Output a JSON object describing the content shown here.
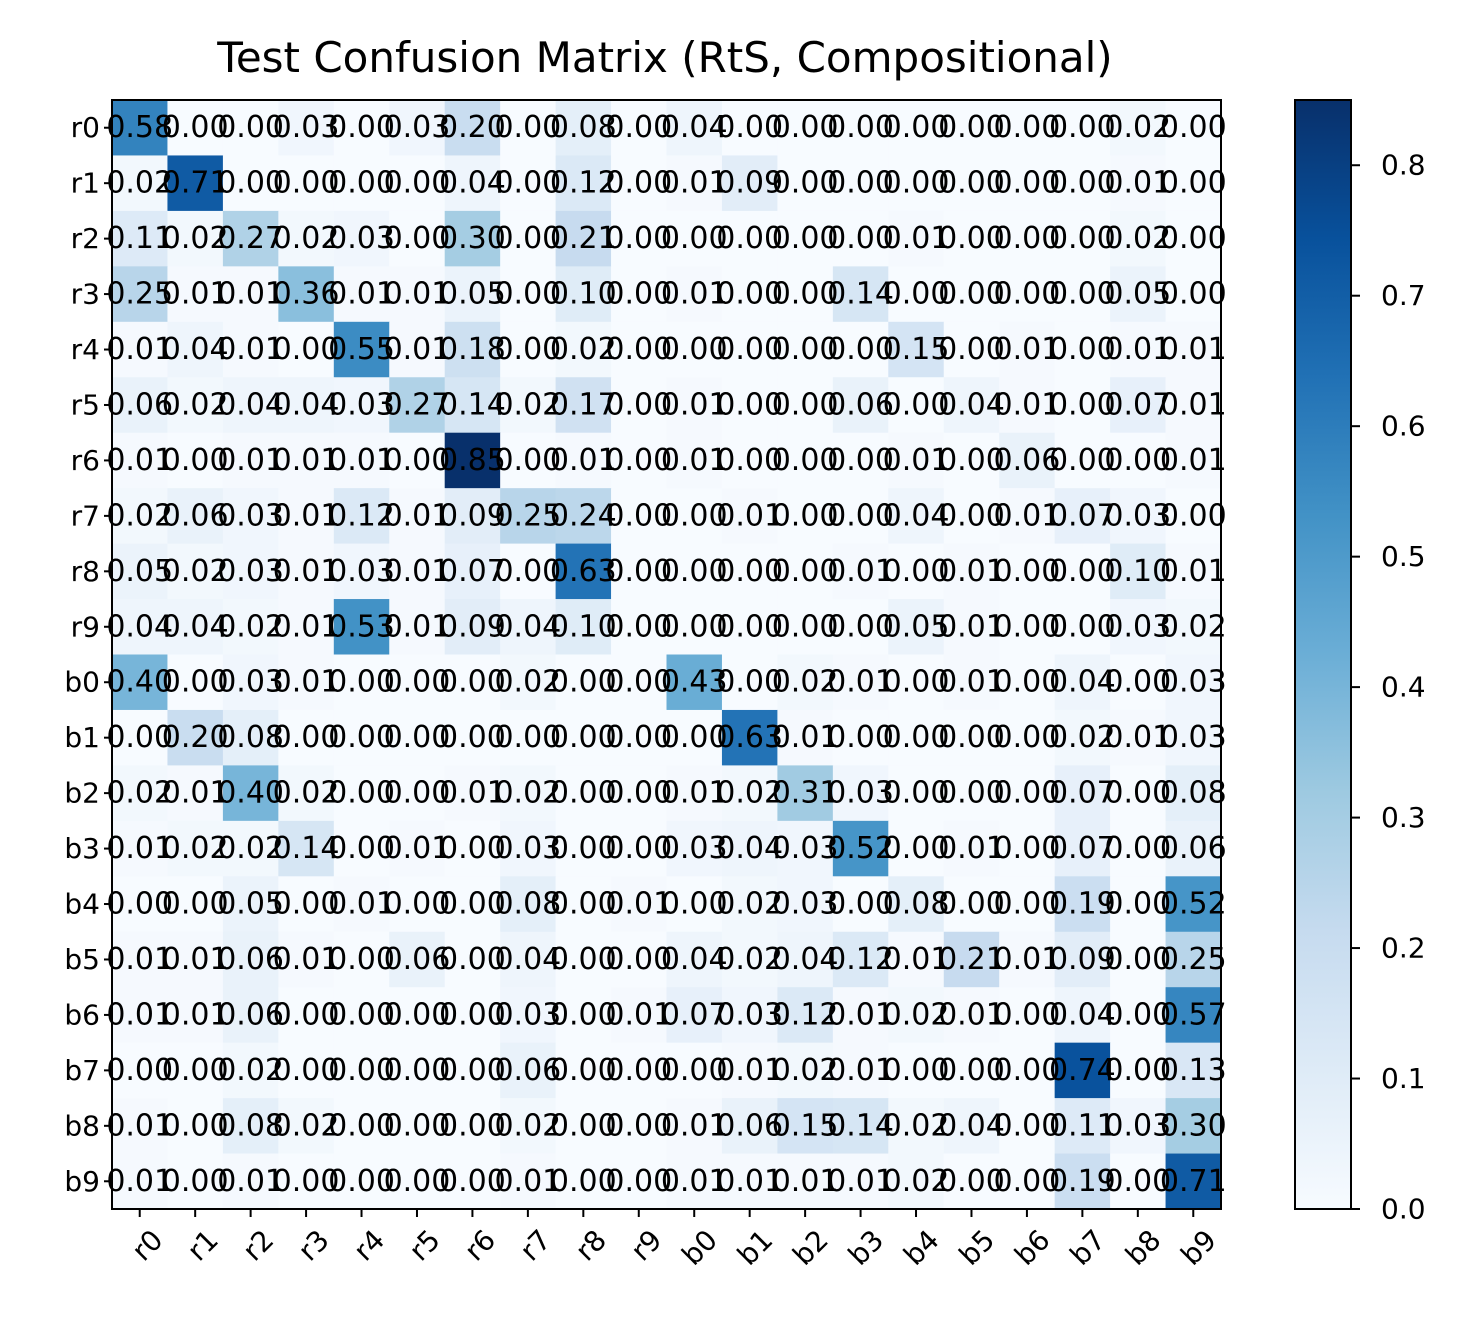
{
  "chart_data": {
    "type": "heatmap",
    "title": "Test Confusion Matrix (RtS, Compositional)",
    "row_labels": [
      "r0",
      "r1",
      "r2",
      "r3",
      "r4",
      "r5",
      "r6",
      "r7",
      "r8",
      "r9",
      "b0",
      "b1",
      "b2",
      "b3",
      "b4",
      "b5",
      "b6",
      "b7",
      "b8",
      "b9"
    ],
    "col_labels": [
      "r0",
      "r1",
      "r2",
      "r3",
      "r4",
      "r5",
      "r6",
      "r7",
      "r8",
      "r9",
      "b0",
      "b1",
      "b2",
      "b3",
      "b4",
      "b5",
      "b6",
      "b7",
      "b8",
      "b9"
    ],
    "values": [
      [
        0.58,
        0.0,
        0.0,
        0.03,
        0.0,
        0.03,
        0.2,
        0.0,
        0.08,
        0.0,
        0.04,
        0.0,
        0.0,
        0.0,
        0.0,
        0.0,
        0.0,
        0.0,
        0.02,
        0.0
      ],
      [
        0.02,
        0.71,
        0.0,
        0.0,
        0.0,
        0.0,
        0.04,
        0.0,
        0.12,
        0.0,
        0.01,
        0.09,
        0.0,
        0.0,
        0.0,
        0.0,
        0.0,
        0.0,
        0.01,
        0.0
      ],
      [
        0.11,
        0.02,
        0.27,
        0.02,
        0.03,
        0.0,
        0.3,
        0.0,
        0.21,
        0.0,
        0.0,
        0.0,
        0.0,
        0.0,
        0.01,
        0.0,
        0.0,
        0.0,
        0.02,
        0.0
      ],
      [
        0.25,
        0.01,
        0.01,
        0.36,
        0.01,
        0.01,
        0.05,
        0.0,
        0.1,
        0.0,
        0.01,
        0.0,
        0.0,
        0.14,
        0.0,
        0.0,
        0.0,
        0.0,
        0.05,
        0.0
      ],
      [
        0.01,
        0.04,
        0.01,
        0.0,
        0.55,
        0.01,
        0.18,
        0.0,
        0.02,
        0.0,
        0.0,
        0.0,
        0.0,
        0.0,
        0.15,
        0.0,
        0.01,
        0.0,
        0.01,
        0.01
      ],
      [
        0.06,
        0.02,
        0.04,
        0.04,
        0.03,
        0.27,
        0.14,
        0.02,
        0.17,
        0.0,
        0.01,
        0.0,
        0.0,
        0.06,
        0.0,
        0.04,
        0.01,
        0.0,
        0.07,
        0.01
      ],
      [
        0.01,
        0.0,
        0.01,
        0.01,
        0.01,
        0.0,
        0.85,
        0.0,
        0.01,
        0.0,
        0.01,
        0.0,
        0.0,
        0.0,
        0.01,
        0.0,
        0.06,
        0.0,
        0.0,
        0.01
      ],
      [
        0.02,
        0.06,
        0.03,
        0.01,
        0.12,
        0.01,
        0.09,
        0.25,
        0.24,
        0.0,
        0.0,
        0.01,
        0.0,
        0.0,
        0.04,
        0.0,
        0.01,
        0.07,
        0.03,
        0.0
      ],
      [
        0.05,
        0.02,
        0.03,
        0.01,
        0.03,
        0.01,
        0.07,
        0.0,
        0.63,
        0.0,
        0.0,
        0.0,
        0.0,
        0.01,
        0.0,
        0.01,
        0.0,
        0.0,
        0.1,
        0.01
      ],
      [
        0.04,
        0.04,
        0.02,
        0.01,
        0.53,
        0.01,
        0.09,
        0.04,
        0.1,
        0.0,
        0.0,
        0.0,
        0.0,
        0.0,
        0.05,
        0.01,
        0.0,
        0.0,
        0.03,
        0.02
      ],
      [
        0.4,
        0.0,
        0.03,
        0.01,
        0.0,
        0.0,
        0.0,
        0.02,
        0.0,
        0.0,
        0.43,
        0.0,
        0.02,
        0.01,
        0.0,
        0.01,
        0.0,
        0.04,
        0.0,
        0.03
      ],
      [
        0.0,
        0.2,
        0.08,
        0.0,
        0.0,
        0.0,
        0.0,
        0.0,
        0.0,
        0.0,
        0.0,
        0.63,
        0.01,
        0.0,
        0.0,
        0.0,
        0.0,
        0.02,
        0.01,
        0.03
      ],
      [
        0.02,
        0.01,
        0.4,
        0.02,
        0.0,
        0.0,
        0.01,
        0.02,
        0.0,
        0.0,
        0.01,
        0.02,
        0.31,
        0.03,
        0.0,
        0.0,
        0.0,
        0.07,
        0.0,
        0.08
      ],
      [
        0.01,
        0.02,
        0.02,
        0.14,
        0.0,
        0.01,
        0.0,
        0.03,
        0.0,
        0.0,
        0.03,
        0.04,
        0.03,
        0.52,
        0.0,
        0.01,
        0.0,
        0.07,
        0.0,
        0.06
      ],
      [
        0.0,
        0.0,
        0.05,
        0.0,
        0.01,
        0.0,
        0.0,
        0.08,
        0.0,
        0.01,
        0.0,
        0.02,
        0.03,
        0.0,
        0.08,
        0.0,
        0.0,
        0.19,
        0.0,
        0.52
      ],
      [
        0.01,
        0.01,
        0.06,
        0.01,
        0.0,
        0.06,
        0.0,
        0.04,
        0.0,
        0.0,
        0.04,
        0.02,
        0.04,
        0.12,
        0.01,
        0.21,
        0.01,
        0.09,
        0.0,
        0.25
      ],
      [
        0.01,
        0.01,
        0.06,
        0.0,
        0.0,
        0.0,
        0.0,
        0.03,
        0.0,
        0.01,
        0.07,
        0.03,
        0.12,
        0.01,
        0.02,
        0.01,
        0.0,
        0.04,
        0.0,
        0.57
      ],
      [
        0.0,
        0.0,
        0.02,
        0.0,
        0.0,
        0.0,
        0.0,
        0.06,
        0.0,
        0.0,
        0.0,
        0.01,
        0.02,
        0.01,
        0.0,
        0.0,
        0.0,
        0.74,
        0.0,
        0.13
      ],
      [
        0.01,
        0.0,
        0.08,
        0.02,
        0.0,
        0.0,
        0.0,
        0.02,
        0.0,
        0.0,
        0.01,
        0.06,
        0.15,
        0.14,
        0.02,
        0.04,
        0.0,
        0.11,
        0.03,
        0.3
      ],
      [
        0.01,
        0.0,
        0.01,
        0.0,
        0.0,
        0.0,
        0.0,
        0.01,
        0.0,
        0.0,
        0.01,
        0.01,
        0.01,
        0.01,
        0.02,
        0.0,
        0.0,
        0.19,
        0.0,
        0.71
      ]
    ],
    "colormap": "Blues",
    "vmin": 0.0,
    "vmax": 0.85,
    "colorbar_ticks": [
      "0.0",
      "0.1",
      "0.2",
      "0.3",
      "0.4",
      "0.5",
      "0.6",
      "0.7",
      "0.8"
    ],
    "xlabel": "",
    "ylabel": ""
  }
}
